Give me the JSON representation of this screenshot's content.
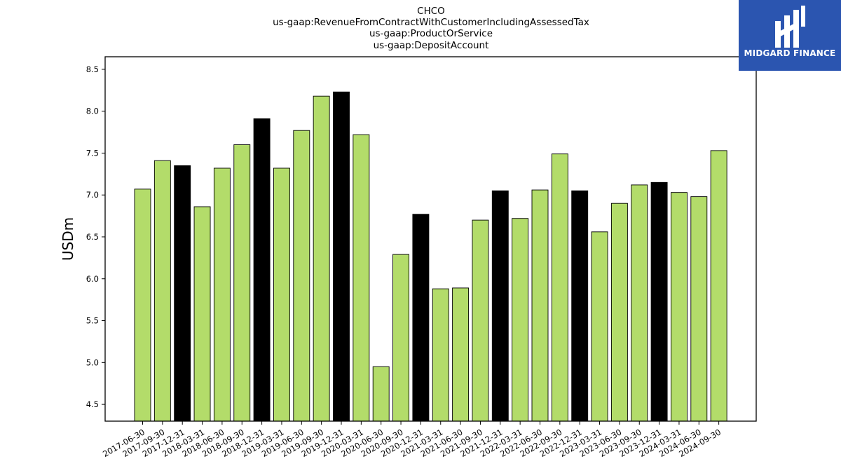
{
  "chart_data": {
    "type": "bar",
    "title_lines": [
      "CHCO",
      "us-gaap:RevenueFromContractWithCustomerIncludingAssessedTax",
      "us-gaap:ProductOrService",
      "us-gaap:DepositAccount"
    ],
    "ylabel": "USDm",
    "xlabel": "",
    "ylim": [
      4.3,
      8.65
    ],
    "yticks": [
      4.5,
      5.0,
      5.5,
      6.0,
      6.5,
      7.0,
      7.5,
      8.0,
      8.5
    ],
    "categories": [
      "2017-06-30",
      "2017-09-30",
      "2017-12-31",
      "2018-03-31",
      "2018-06-30",
      "2018-09-30",
      "2018-12-31",
      "2019-03-31",
      "2019-06-30",
      "2019-09-30",
      "2019-12-31",
      "2020-03-31",
      "2020-06-30",
      "2020-09-30",
      "2020-12-31",
      "2021-03-31",
      "2021-06-30",
      "2021-09-30",
      "2021-12-31",
      "2022-03-31",
      "2022-06-30",
      "2022-09-30",
      "2022-12-31",
      "2023-03-31",
      "2023-06-30",
      "2023-09-30",
      "2023-12-31",
      "2024-03-31",
      "2024-06-30",
      "2024-09-30"
    ],
    "values": [
      7.07,
      7.41,
      7.35,
      6.86,
      7.32,
      7.6,
      7.91,
      7.32,
      7.77,
      8.18,
      8.23,
      7.72,
      4.95,
      6.29,
      6.77,
      5.88,
      5.89,
      6.7,
      7.05,
      6.72,
      7.06,
      7.49,
      7.05,
      6.56,
      6.9,
      7.12,
      7.15,
      7.03,
      6.98,
      7.53
    ],
    "year_end_highlight": [
      false,
      false,
      true,
      false,
      false,
      false,
      true,
      false,
      false,
      false,
      true,
      false,
      false,
      false,
      true,
      false,
      false,
      false,
      true,
      false,
      false,
      false,
      true,
      false,
      false,
      false,
      true,
      false,
      false,
      false
    ],
    "colors": {
      "quarter": "#b3dc6a",
      "year_end": "#000000",
      "edge": "#000000"
    },
    "grid": false
  },
  "logo": {
    "text": "MIDGARD FINANCE",
    "background": "#2b55b0"
  }
}
